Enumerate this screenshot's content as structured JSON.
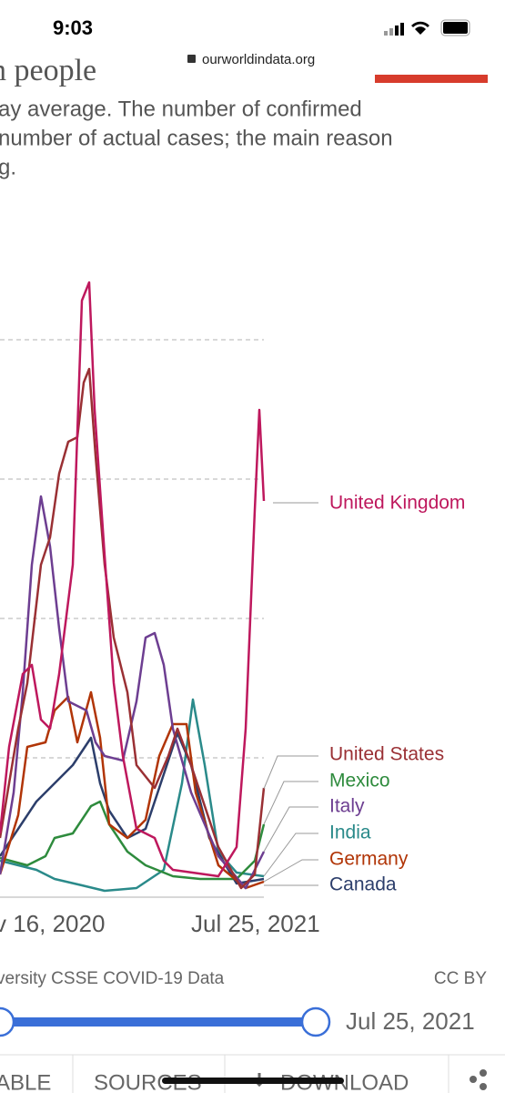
{
  "status_bar": {
    "time": "9:03"
  },
  "browser": {
    "url": "ourworldindata.org"
  },
  "title_fragment": "n people",
  "description": [
    "ay average. The number of confirmed",
    "number of actual cases; the main reason",
    "g."
  ],
  "chart": {
    "series_labels": [
      "United Kingdom",
      "United States",
      "Mexico",
      "Italy",
      "India",
      "Germany",
      "Canada"
    ],
    "x_labels": [
      "v 16, 2020",
      "Jul 25, 2021"
    ]
  },
  "source": "versity CSSE COVID-19 Data",
  "license": "CC BY",
  "slider": {
    "end_label": "Jul 25, 2021"
  },
  "tabs": [
    "ABLE",
    "SOURCES",
    "DOWNLOAD"
  ]
}
